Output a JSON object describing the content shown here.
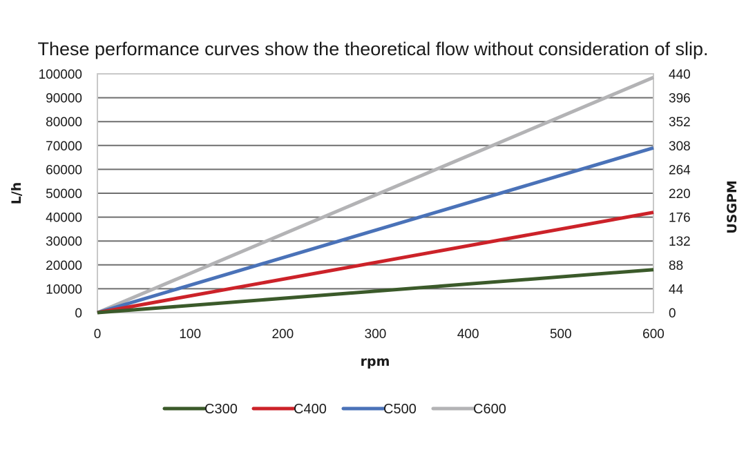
{
  "chart_data": {
    "type": "line",
    "title": "These performance curves show the theoretical flow without consideration of slip.",
    "xlabel": "rpm",
    "ylabel": "L/h",
    "y2label": "USGPM",
    "x": [
      0,
      600
    ],
    "xlim": [
      0,
      600
    ],
    "ylim": [
      0,
      100000
    ],
    "y2lim": [
      0,
      440
    ],
    "xticks": [
      "0",
      "100",
      "200",
      "300",
      "400",
      "500",
      "600"
    ],
    "yticks": [
      "0",
      "10000",
      "20000",
      "30000",
      "40000",
      "50000",
      "60000",
      "70000",
      "80000",
      "90000",
      "100000"
    ],
    "y2ticks": [
      "0",
      "44",
      "88",
      "132",
      "176",
      "220",
      "264",
      "308",
      "352",
      "396",
      "440"
    ],
    "grid": true,
    "legend_position": "bottom",
    "series": [
      {
        "name": "C300",
        "color": "#3b5a2a",
        "values": [
          0,
          18000
        ]
      },
      {
        "name": "C400",
        "color": "#cc2229",
        "values": [
          0,
          42000
        ]
      },
      {
        "name": "C500",
        "color": "#4a72b8",
        "values": [
          0,
          69000
        ]
      },
      {
        "name": "C600",
        "color": "#b3b3b5",
        "values": [
          0,
          98500
        ]
      }
    ]
  }
}
